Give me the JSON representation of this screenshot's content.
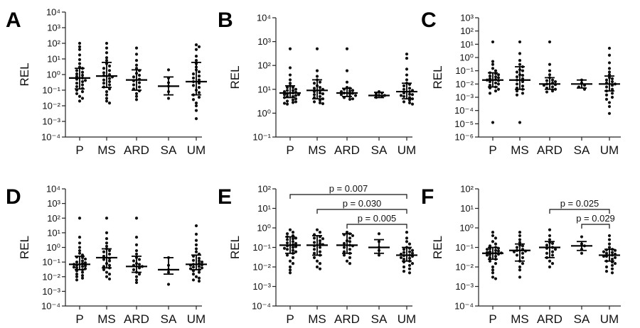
{
  "categories": [
    "P",
    "MS",
    "ARD",
    "SA",
    "UM"
  ],
  "ylabel": "REL",
  "chart_data": [
    {
      "panel": "A",
      "type": "scatter",
      "ylabel": "REL",
      "scale": "log",
      "ylim_exp": [
        -4,
        4
      ],
      "ticks_exp": [
        -4,
        -3,
        -2,
        -1,
        0,
        1,
        2,
        3,
        4
      ],
      "categories": [
        "P",
        "MS",
        "ARD",
        "SA",
        "UM"
      ],
      "groups": [
        {
          "category": "P",
          "median": 0.6,
          "q1": 0.12,
          "q3": 2.5,
          "points": [
            100,
            60,
            40,
            18,
            9,
            5,
            3,
            2.5,
            1.8,
            1.4,
            1.1,
            0.9,
            0.75,
            0.6,
            0.5,
            0.42,
            0.35,
            0.28,
            0.22,
            0.17,
            0.13,
            0.1,
            0.08,
            0.06,
            0.04,
            0.03,
            0.02
          ]
        },
        {
          "category": "MS",
          "median": 0.8,
          "q1": 0.15,
          "q3": 6,
          "points": [
            100,
            50,
            25,
            12,
            8,
            5,
            3.5,
            2.5,
            1.8,
            1.3,
            1,
            0.85,
            0.7,
            0.55,
            0.45,
            0.35,
            0.28,
            0.22,
            0.16,
            0.12,
            0.08,
            0.05,
            0.03,
            0.02,
            0.015
          ]
        },
        {
          "category": "ARD",
          "median": 0.45,
          "q1": 0.1,
          "q3": 2,
          "points": [
            50,
            20,
            8,
            4,
            2.5,
            1.8,
            1.2,
            0.9,
            0.7,
            0.5,
            0.4,
            0.3,
            0.22,
            0.16,
            0.12,
            0.09,
            0.06,
            0.04,
            0.025
          ]
        },
        {
          "category": "SA",
          "median": 0.18,
          "q1": 0.05,
          "q3": 0.7,
          "points": [
            2,
            0.6,
            0.3,
            0.18,
            0.08,
            0.03
          ]
        },
        {
          "category": "UM",
          "median": 0.35,
          "q1": 0.05,
          "q3": 6,
          "points": [
            80,
            60,
            40,
            15,
            8,
            5,
            3,
            2,
            1.5,
            1.1,
            0.8,
            0.6,
            0.45,
            0.35,
            0.28,
            0.2,
            0.15,
            0.1,
            0.07,
            0.05,
            0.035,
            0.025,
            0.015,
            0.01,
            0.005,
            0.0015
          ]
        }
      ],
      "comparisons": []
    },
    {
      "panel": "B",
      "type": "scatter",
      "ylabel": "REL",
      "scale": "log",
      "ylim_exp": [
        -1,
        4
      ],
      "ticks_exp": [
        -1,
        0,
        1,
        2,
        3,
        4
      ],
      "categories": [
        "P",
        "MS",
        "ARD",
        "SA",
        "UM"
      ],
      "groups": [
        {
          "category": "P",
          "median": 7,
          "q1": 4.5,
          "q3": 14,
          "points": [
            500,
            80,
            40,
            25,
            18,
            14,
            12,
            10,
            9,
            8,
            7.5,
            7,
            6.5,
            6,
            5.5,
            5,
            4.5,
            4,
            3.6,
            3.2,
            3,
            2.8,
            2.6,
            2.4,
            12,
            9,
            6,
            5
          ]
        },
        {
          "category": "MS",
          "median": 9,
          "q1": 4,
          "q3": 25,
          "points": [
            500,
            60,
            35,
            25,
            18,
            14,
            12,
            10,
            9,
            8,
            7,
            6,
            5,
            4.5,
            4,
            3.5,
            3,
            2.7,
            2.5,
            20,
            11,
            6.5
          ]
        },
        {
          "category": "ARD",
          "median": 7,
          "q1": 5,
          "q3": 11,
          "points": [
            500,
            60,
            20,
            12,
            10,
            9,
            8,
            7,
            6.5,
            6,
            5.5,
            5,
            4.5,
            4,
            3.8,
            11,
            8.5,
            6.8
          ]
        },
        {
          "category": "SA",
          "median": 5.5,
          "q1": 4.5,
          "q3": 7.5,
          "points": [
            8,
            6.5,
            5.5,
            5,
            4.6,
            7
          ]
        },
        {
          "category": "UM",
          "median": 8,
          "q1": 4,
          "q3": 18,
          "points": [
            300,
            200,
            70,
            40,
            25,
            18,
            14,
            11,
            9,
            8,
            7,
            6,
            5.5,
            5,
            4.5,
            4,
            3.5,
            3,
            2.7,
            2.4,
            16,
            10,
            6.2
          ]
        }
      ],
      "comparisons": []
    },
    {
      "panel": "C",
      "type": "scatter",
      "ylabel": "REL",
      "scale": "log",
      "ylim_exp": [
        -6,
        3
      ],
      "ticks_exp": [
        -6,
        -5,
        -4,
        -3,
        -2,
        -1,
        0,
        1,
        2,
        3
      ],
      "categories": [
        "P",
        "MS",
        "ARD",
        "SA",
        "UM"
      ],
      "groups": [
        {
          "category": "P",
          "median": 0.02,
          "q1": 0.006,
          "q3": 0.07,
          "points": [
            15,
            0.5,
            0.3,
            0.15,
            0.1,
            0.07,
            0.05,
            0.04,
            0.03,
            0.025,
            0.02,
            0.018,
            0.015,
            0.012,
            0.01,
            0.008,
            0.006,
            0.005,
            0.004,
            0.003,
            0.002,
            0.06,
            0.035,
            0.022,
            1.25e-05
          ]
        },
        {
          "category": "MS",
          "median": 0.02,
          "q1": 0.004,
          "q3": 0.2,
          "points": [
            15,
            2,
            0.6,
            0.3,
            0.2,
            0.12,
            0.08,
            0.05,
            0.035,
            0.025,
            0.02,
            0.015,
            0.01,
            0.007,
            0.005,
            0.004,
            0.003,
            0.002,
            0.0015,
            0.1,
            0.045,
            1.25e-05
          ]
        },
        {
          "category": "ARD",
          "median": 0.01,
          "q1": 0.004,
          "q3": 0.03,
          "points": [
            15,
            0.3,
            0.1,
            0.05,
            0.03,
            0.02,
            0.015,
            0.012,
            0.01,
            0.008,
            0.006,
            0.005,
            0.004,
            0.003,
            0.0025,
            0.018,
            0.009
          ]
        },
        {
          "category": "SA",
          "median": 0.01,
          "q1": 0.005,
          "q3": 0.02,
          "points": [
            0.02,
            0.012,
            0.008,
            0.006,
            0.004
          ]
        },
        {
          "category": "UM",
          "median": 0.01,
          "q1": 0.003,
          "q3": 0.04,
          "points": [
            5,
            1.5,
            0.4,
            0.15,
            0.08,
            0.05,
            0.03,
            0.02,
            0.015,
            0.01,
            0.008,
            0.006,
            0.004,
            0.003,
            0.002,
            0.0015,
            0.001,
            0.0007,
            0.0004,
            0.0002,
            6e-05,
            0.025,
            0.012
          ]
        }
      ],
      "comparisons": []
    },
    {
      "panel": "D",
      "type": "scatter",
      "ylabel": "REL",
      "scale": "log",
      "ylim_exp": [
        -4,
        4
      ],
      "ticks_exp": [
        -4,
        -3,
        -2,
        -1,
        0,
        1,
        2,
        3,
        4
      ],
      "categories": [
        "P",
        "MS",
        "ARD",
        "SA",
        "UM"
      ],
      "groups": [
        {
          "category": "P",
          "median": 0.07,
          "q1": 0.03,
          "q3": 0.25,
          "points": [
            100,
            5,
            2,
            1,
            0.6,
            0.4,
            0.3,
            0.22,
            0.16,
            0.12,
            0.1,
            0.08,
            0.07,
            0.06,
            0.05,
            0.045,
            0.04,
            0.035,
            0.03,
            0.025,
            0.02,
            0.015,
            0.012,
            0.01,
            0.008,
            0.006,
            0.2,
            0.09,
            0.055
          ]
        },
        {
          "category": "MS",
          "median": 0.2,
          "q1": 0.04,
          "q3": 0.8,
          "points": [
            100,
            10,
            4,
            2,
            1.2,
            0.8,
            0.5,
            0.35,
            0.25,
            0.18,
            0.12,
            0.08,
            0.06,
            0.04,
            0.03,
            0.02,
            0.015,
            0.01,
            0.007,
            0.6,
            0.15,
            0.05
          ]
        },
        {
          "category": "ARD",
          "median": 0.05,
          "q1": 0.02,
          "q3": 0.25,
          "points": [
            100,
            5,
            1.5,
            0.6,
            0.35,
            0.2,
            0.12,
            0.08,
            0.06,
            0.05,
            0.04,
            0.03,
            0.02,
            0.015,
            0.01,
            0.006,
            0.004,
            0.15,
            0.07
          ]
        },
        {
          "category": "SA",
          "median": 0.03,
          "q1": 0.015,
          "q3": 0.2,
          "points": [
            0.2,
            0.06,
            0.03,
            0.02,
            0.003
          ]
        },
        {
          "category": "UM",
          "median": 0.07,
          "q1": 0.03,
          "q3": 0.3,
          "points": [
            30,
            8,
            3,
            1.5,
            0.8,
            0.5,
            0.35,
            0.25,
            0.18,
            0.13,
            0.1,
            0.08,
            0.07,
            0.06,
            0.05,
            0.04,
            0.035,
            0.03,
            0.025,
            0.02,
            0.015,
            0.01,
            0.008,
            0.006,
            0.005,
            0.12,
            0.065,
            0.045
          ]
        }
      ],
      "comparisons": []
    },
    {
      "panel": "E",
      "type": "scatter",
      "ylabel": "REL",
      "scale": "log",
      "ylim_exp": [
        -4,
        2
      ],
      "ticks_exp": [
        -4,
        -3,
        -2,
        -1,
        0,
        1,
        2
      ],
      "categories": [
        "P",
        "MS",
        "ARD",
        "SA",
        "UM"
      ],
      "groups": [
        {
          "category": "P",
          "median": 0.13,
          "q1": 0.05,
          "q3": 0.35,
          "points": [
            0.8,
            0.6,
            0.5,
            0.4,
            0.35,
            0.3,
            0.25,
            0.2,
            0.17,
            0.14,
            0.12,
            0.1,
            0.09,
            0.08,
            0.07,
            0.06,
            0.05,
            0.04,
            0.03,
            0.02,
            0.015,
            0.01,
            0.007,
            0.005,
            0.28,
            0.16,
            0.11
          ]
        },
        {
          "category": "MS",
          "median": 0.13,
          "q1": 0.04,
          "q3": 0.4,
          "points": [
            0.8,
            0.6,
            0.45,
            0.35,
            0.28,
            0.22,
            0.18,
            0.14,
            0.12,
            0.1,
            0.08,
            0.06,
            0.05,
            0.04,
            0.03,
            0.02,
            0.015,
            0.01,
            0.008,
            0.3,
            0.16
          ]
        },
        {
          "category": "ARD",
          "median": 0.13,
          "q1": 0.05,
          "q3": 0.5,
          "points": [
            0.6,
            0.5,
            0.4,
            0.3,
            0.22,
            0.16,
            0.13,
            0.1,
            0.08,
            0.06,
            0.05,
            0.04,
            0.03,
            0.02,
            0.015,
            0.45,
            0.2,
            0.12
          ]
        },
        {
          "category": "SA",
          "median": 0.1,
          "q1": 0.05,
          "q3": 0.25,
          "points": [
            0.5,
            0.2,
            0.1,
            0.07,
            0.04
          ]
        },
        {
          "category": "UM",
          "median": 0.04,
          "q1": 0.02,
          "q3": 0.1,
          "points": [
            0.6,
            0.3,
            0.2,
            0.15,
            0.1,
            0.08,
            0.07,
            0.06,
            0.05,
            0.045,
            0.04,
            0.035,
            0.03,
            0.025,
            0.02,
            0.018,
            0.015,
            0.012,
            0.01,
            0.008,
            0.006,
            0.005,
            0.09,
            0.055,
            0.038,
            0.028
          ]
        }
      ],
      "comparisons": [
        {
          "from": "P",
          "to": "UM",
          "label": "p = 0.007"
        },
        {
          "from": "MS",
          "to": "UM",
          "label": "p = 0.030"
        },
        {
          "from": "ARD",
          "to": "UM",
          "label": "p = 0.005"
        }
      ]
    },
    {
      "panel": "F",
      "type": "scatter",
      "ylabel": "REL",
      "scale": "log",
      "ylim_exp": [
        -4,
        2
      ],
      "ticks_exp": [
        -4,
        -3,
        -2,
        -1,
        0,
        1,
        2
      ],
      "categories": [
        "P",
        "MS",
        "ARD",
        "SA",
        "UM"
      ],
      "groups": [
        {
          "category": "P",
          "median": 0.05,
          "q1": 0.025,
          "q3": 0.1,
          "points": [
            0.6,
            0.4,
            0.3,
            0.2,
            0.15,
            0.12,
            0.1,
            0.09,
            0.08,
            0.07,
            0.065,
            0.06,
            0.055,
            0.05,
            0.045,
            0.04,
            0.035,
            0.03,
            0.025,
            0.02,
            0.015,
            0.01,
            0.007,
            0.005,
            0.003,
            0.0025,
            0.085,
            0.052,
            0.042
          ]
        },
        {
          "category": "MS",
          "median": 0.07,
          "q1": 0.02,
          "q3": 0.15,
          "points": [
            0.6,
            0.4,
            0.25,
            0.18,
            0.13,
            0.1,
            0.08,
            0.07,
            0.06,
            0.05,
            0.04,
            0.03,
            0.02,
            0.015,
            0.01,
            0.007,
            0.003,
            0.12,
            0.065
          ]
        },
        {
          "category": "ARD",
          "median": 0.1,
          "q1": 0.03,
          "q3": 0.2,
          "points": [
            0.8,
            0.4,
            0.25,
            0.18,
            0.13,
            0.1,
            0.08,
            0.06,
            0.05,
            0.04,
            0.03,
            0.02,
            0.015,
            0.01,
            0.16,
            0.09
          ]
        },
        {
          "category": "SA",
          "median": 0.12,
          "q1": 0.07,
          "q3": 0.2,
          "points": [
            0.35,
            0.15,
            0.12,
            0.08,
            0.05
          ]
        },
        {
          "category": "UM",
          "median": 0.04,
          "q1": 0.02,
          "q3": 0.08,
          "points": [
            0.4,
            0.25,
            0.15,
            0.1,
            0.08,
            0.07,
            0.06,
            0.05,
            0.045,
            0.04,
            0.035,
            0.03,
            0.025,
            0.02,
            0.018,
            0.015,
            0.012,
            0.01,
            0.008,
            0.006,
            0.005,
            0.075,
            0.055,
            0.035
          ]
        }
      ],
      "comparisons": [
        {
          "from": "ARD",
          "to": "UM",
          "label": "p = 0.025"
        },
        {
          "from": "SA",
          "to": "UM",
          "label": "p = 0.029"
        }
      ]
    }
  ]
}
